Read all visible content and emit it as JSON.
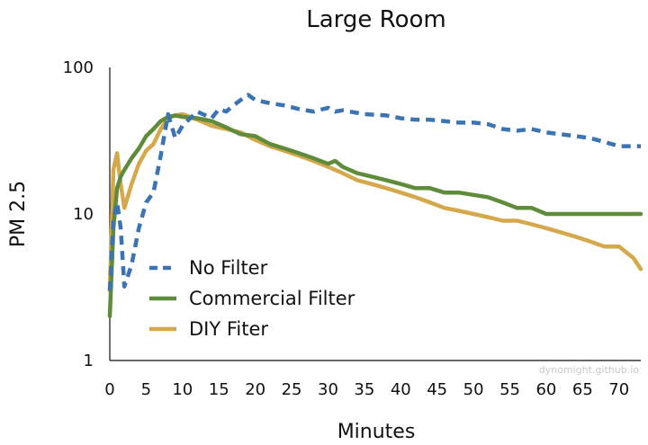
{
  "watermark": "dynomight.github.io",
  "chart_data": {
    "type": "line",
    "title": "Large Room",
    "xlabel": "Minutes",
    "ylabel": "PM 2.5",
    "xlim": [
      0,
      73
    ],
    "ylim": [
      1,
      100
    ],
    "yscale": "log",
    "grid": false,
    "legend_position": "lower-left",
    "x_ticks": [
      0,
      5,
      10,
      15,
      20,
      25,
      30,
      35,
      40,
      45,
      50,
      55,
      60,
      65,
      70
    ],
    "x_tick_labels": [
      "0",
      "5",
      "10",
      "15",
      "20",
      "25",
      "30",
      "35",
      "40",
      "45",
      "50",
      "55",
      "60",
      "65",
      "70"
    ],
    "y_ticks": [
      1,
      10,
      100
    ],
    "y_tick_labels": [
      "1",
      "10",
      "100"
    ],
    "series": [
      {
        "name": "No Filter",
        "color": "#3b73b3",
        "dash": true,
        "x": [
          0,
          0.5,
          1,
          1.5,
          2,
          3,
          4,
          5,
          6,
          7,
          8,
          9,
          10,
          12,
          14,
          15,
          16,
          17,
          18,
          19,
          20,
          22,
          24,
          26,
          28,
          30,
          31,
          32,
          35,
          38,
          40,
          42,
          44,
          46,
          48,
          50,
          52,
          54,
          56,
          58,
          60,
          62,
          64,
          66,
          68,
          70,
          73
        ],
        "y": [
          3,
          9,
          12,
          8,
          3.2,
          4.5,
          8,
          12,
          14,
          25,
          48,
          33,
          40,
          50,
          45,
          52,
          50,
          55,
          60,
          65,
          60,
          57,
          55,
          52,
          50,
          53,
          50,
          51,
          48,
          47,
          45,
          44,
          44,
          43,
          42,
          42,
          41,
          38,
          37,
          38,
          36,
          35,
          34,
          33,
          31,
          29,
          29
        ]
      },
      {
        "name": "Commercial Filter",
        "color": "#5e8c3a",
        "dash": false,
        "x": [
          0,
          0.5,
          1,
          1.5,
          2,
          3,
          4,
          5,
          6,
          7,
          8,
          9,
          10,
          12,
          14,
          16,
          18,
          20,
          22,
          24,
          26,
          28,
          30,
          31,
          32,
          34,
          36,
          38,
          40,
          42,
          44,
          46,
          48,
          50,
          52,
          54,
          56,
          58,
          60,
          62,
          64,
          66,
          68,
          70,
          73
        ],
        "y": [
          2,
          8,
          15,
          18,
          20,
          24,
          28,
          34,
          38,
          43,
          46,
          47,
          46,
          45,
          43,
          39,
          35,
          34,
          30,
          28,
          26,
          24,
          22,
          23,
          21,
          19,
          18,
          17,
          16,
          15,
          15,
          14,
          14,
          13.5,
          13,
          12,
          11,
          11,
          10,
          10,
          10,
          10,
          10,
          10,
          10
        ]
      },
      {
        "name": "DIY Fiter",
        "color": "#d4a84b",
        "dash": false,
        "x": [
          0,
          0.5,
          1,
          1.5,
          2,
          3,
          4,
          5,
          6,
          7,
          8,
          9,
          10,
          12,
          14,
          16,
          18,
          20,
          22,
          24,
          26,
          28,
          30,
          32,
          34,
          36,
          38,
          40,
          42,
          44,
          46,
          48,
          50,
          52,
          54,
          56,
          58,
          60,
          62,
          64,
          66,
          68,
          70,
          72,
          73
        ],
        "y": [
          3,
          20,
          26,
          16,
          11,
          16,
          22,
          27,
          30,
          38,
          45,
          47,
          48,
          44,
          40,
          38,
          36,
          32,
          29,
          27,
          25,
          23,
          21,
          19,
          17,
          16,
          15,
          14,
          13,
          12,
          11,
          10.5,
          10,
          9.5,
          9,
          9,
          8.5,
          8,
          7.5,
          7,
          6.5,
          6,
          6,
          5,
          4.2
        ]
      }
    ]
  }
}
